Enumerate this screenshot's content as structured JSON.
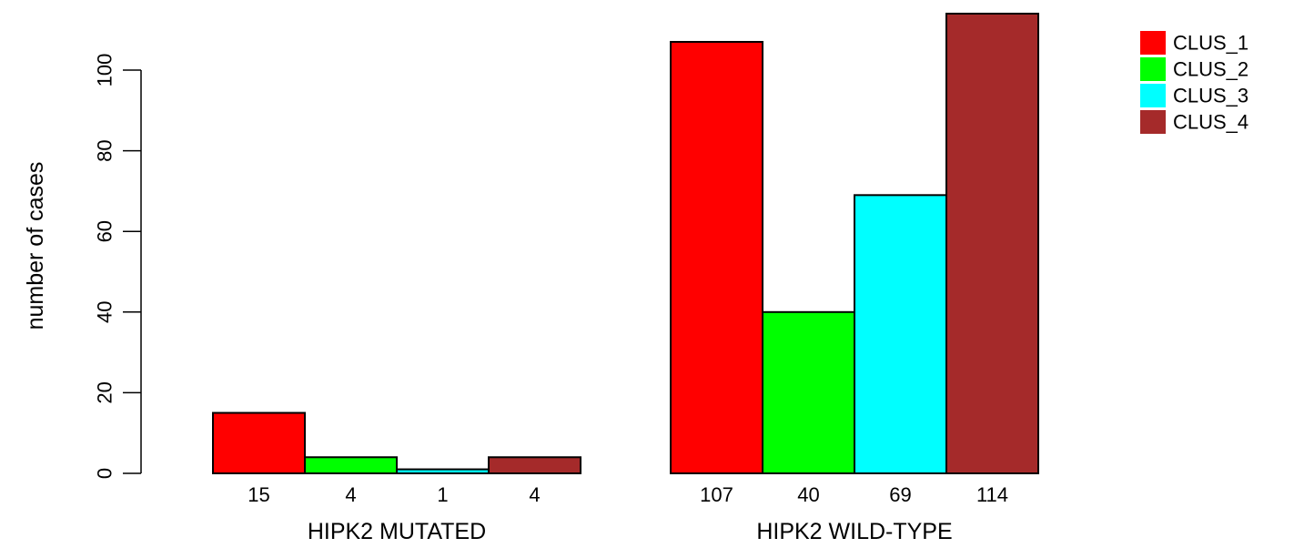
{
  "chart_data": {
    "type": "bar",
    "title": "",
    "ylabel": "number of cases",
    "ylim": [
      0,
      114
    ],
    "yticks": [
      0,
      20,
      40,
      60,
      80,
      100
    ],
    "groups": [
      "HIPK2 MUTATED",
      "HIPK2 WILD-TYPE"
    ],
    "series": [
      {
        "name": "CLUS_1",
        "color": "#ff0000",
        "values": [
          15,
          107
        ]
      },
      {
        "name": "CLUS_2",
        "color": "#00ff00",
        "values": [
          4,
          40
        ]
      },
      {
        "name": "CLUS_3",
        "color": "#00ffff",
        "values": [
          1,
          69
        ]
      },
      {
        "name": "CLUS_4",
        "color": "#a52a2a",
        "values": [
          4,
          114
        ]
      }
    ],
    "bar_value_labels": [
      [
        "15",
        "4",
        "1",
        "4"
      ],
      [
        "107",
        "40",
        "69",
        "114"
      ]
    ],
    "legend_position": "top-right",
    "grid": false
  }
}
